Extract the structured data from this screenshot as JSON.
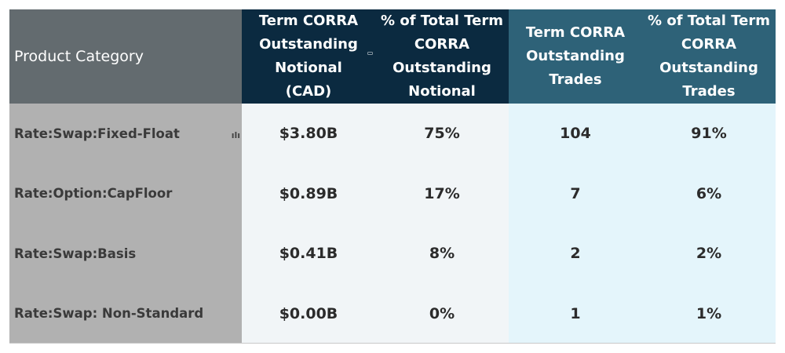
{
  "header": {
    "category": "Product Category",
    "col1": [
      "Term CORRA",
      "Outstanding",
      "Notional",
      "(CAD)"
    ],
    "col2": [
      "% of Total Term",
      "CORRA",
      "Outstanding",
      "Notional"
    ],
    "col3": [
      "Term CORRA",
      "Outstanding",
      "Trades"
    ],
    "col4": [
      "% of Total Term",
      "CORRA",
      "Outstanding",
      "Trades"
    ]
  },
  "rows": [
    {
      "category": "Rate:Swap:Fixed-Float",
      "notional": "$3.80B",
      "pct_notional": "75%",
      "trades": "104",
      "pct_trades": "91%"
    },
    {
      "category": "Rate:Option:CapFloor",
      "notional": "$0.89B",
      "pct_notional": "17%",
      "trades": "7",
      "pct_trades": "6%"
    },
    {
      "category": "Rate:Swap:Basis",
      "notional": "$0.41B",
      "pct_notional": "8%",
      "trades": "2",
      "pct_trades": "2%"
    },
    {
      "category": "Rate:Swap: Non-Standard",
      "notional": "$0.00B",
      "pct_notional": "0%",
      "trades": "1",
      "pct_trades": "1%"
    }
  ],
  "icons": {
    "header_filter": "filter-icon",
    "row_chart": "bar-chart-icon"
  },
  "colors": {
    "category_header": "#636b6f",
    "notional_header": "#0b2a40",
    "trades_header": "#2e6278",
    "category_cells": "#b1b1b1"
  }
}
